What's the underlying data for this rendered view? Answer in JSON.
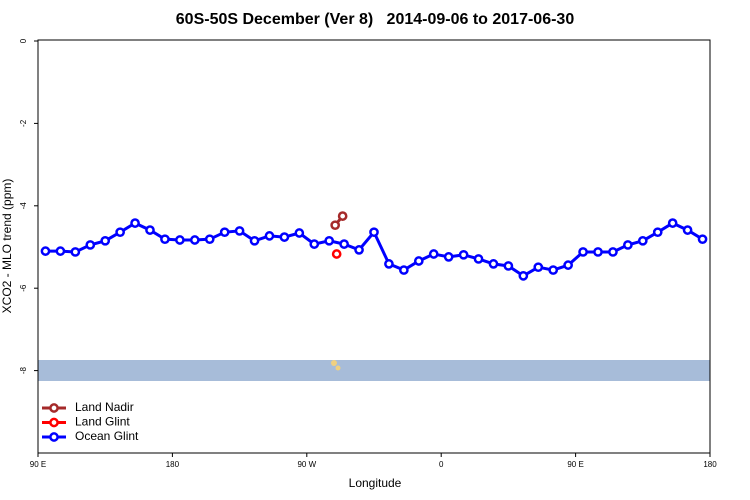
{
  "chart_data": {
    "type": "line",
    "title": "60S-50S December (Ver 8)   2014-09-06 to 2017-06-30",
    "x_label": "Longitude",
    "y_label": "XCO2 - MLO trend (ppm)",
    "xlim": [
      90,
      540
    ],
    "xticks": [
      {
        "value": 90,
        "label": "90 E"
      },
      180,
      {
        "value": 270,
        "label": "90 W"
      },
      {
        "value": 360,
        "label": "0"
      },
      {
        "value": 450,
        "label": "90 E"
      },
      {
        "value": 540,
        "label": "180"
      }
    ],
    "ylim": [
      -10,
      0
    ],
    "yticks": [
      0,
      -2,
      -4,
      -6,
      -8
    ],
    "legend": "bottom-left",
    "series": [
      {
        "name": "Land Nadir",
        "color": "#a52a2a",
        "x": [
          289,
          294
        ],
        "values": [
          -4.47,
          -4.25
        ]
      },
      {
        "name": "Land Glint",
        "color": "#ff0000",
        "x": [
          290
        ],
        "values": [
          -5.17
        ]
      },
      {
        "name": "Ocean Glint",
        "color": "#0000ff",
        "x": [
          95,
          105,
          115,
          125,
          135,
          145,
          155,
          165,
          175,
          185,
          195,
          205,
          215,
          225,
          235,
          245,
          255,
          265,
          275,
          285,
          295,
          305,
          315,
          325,
          335,
          345,
          355,
          365,
          375,
          385,
          395,
          405,
          415,
          425,
          435,
          445,
          455,
          465,
          475,
          485,
          495,
          505,
          515,
          525,
          535
        ],
        "values": [
          -5.1,
          -5.1,
          -5.12,
          -4.95,
          -4.85,
          -4.64,
          -4.42,
          -4.59,
          -4.81,
          -4.83,
          -4.83,
          -4.81,
          -4.64,
          -4.61,
          -4.85,
          -4.73,
          -4.76,
          -4.66,
          -4.93,
          -4.85,
          -4.93,
          -5.07,
          -4.64,
          -5.41,
          -5.56,
          -5.34,
          -5.17,
          -5.24,
          -5.19,
          -5.29,
          -5.41,
          -5.46,
          -5.7,
          -5.49,
          -5.56,
          -5.44,
          -5.12,
          -5.12,
          -5.12,
          -4.95,
          -4.85,
          -4.64,
          -4.42,
          -4.59,
          -4.81
        ]
      }
    ]
  }
}
